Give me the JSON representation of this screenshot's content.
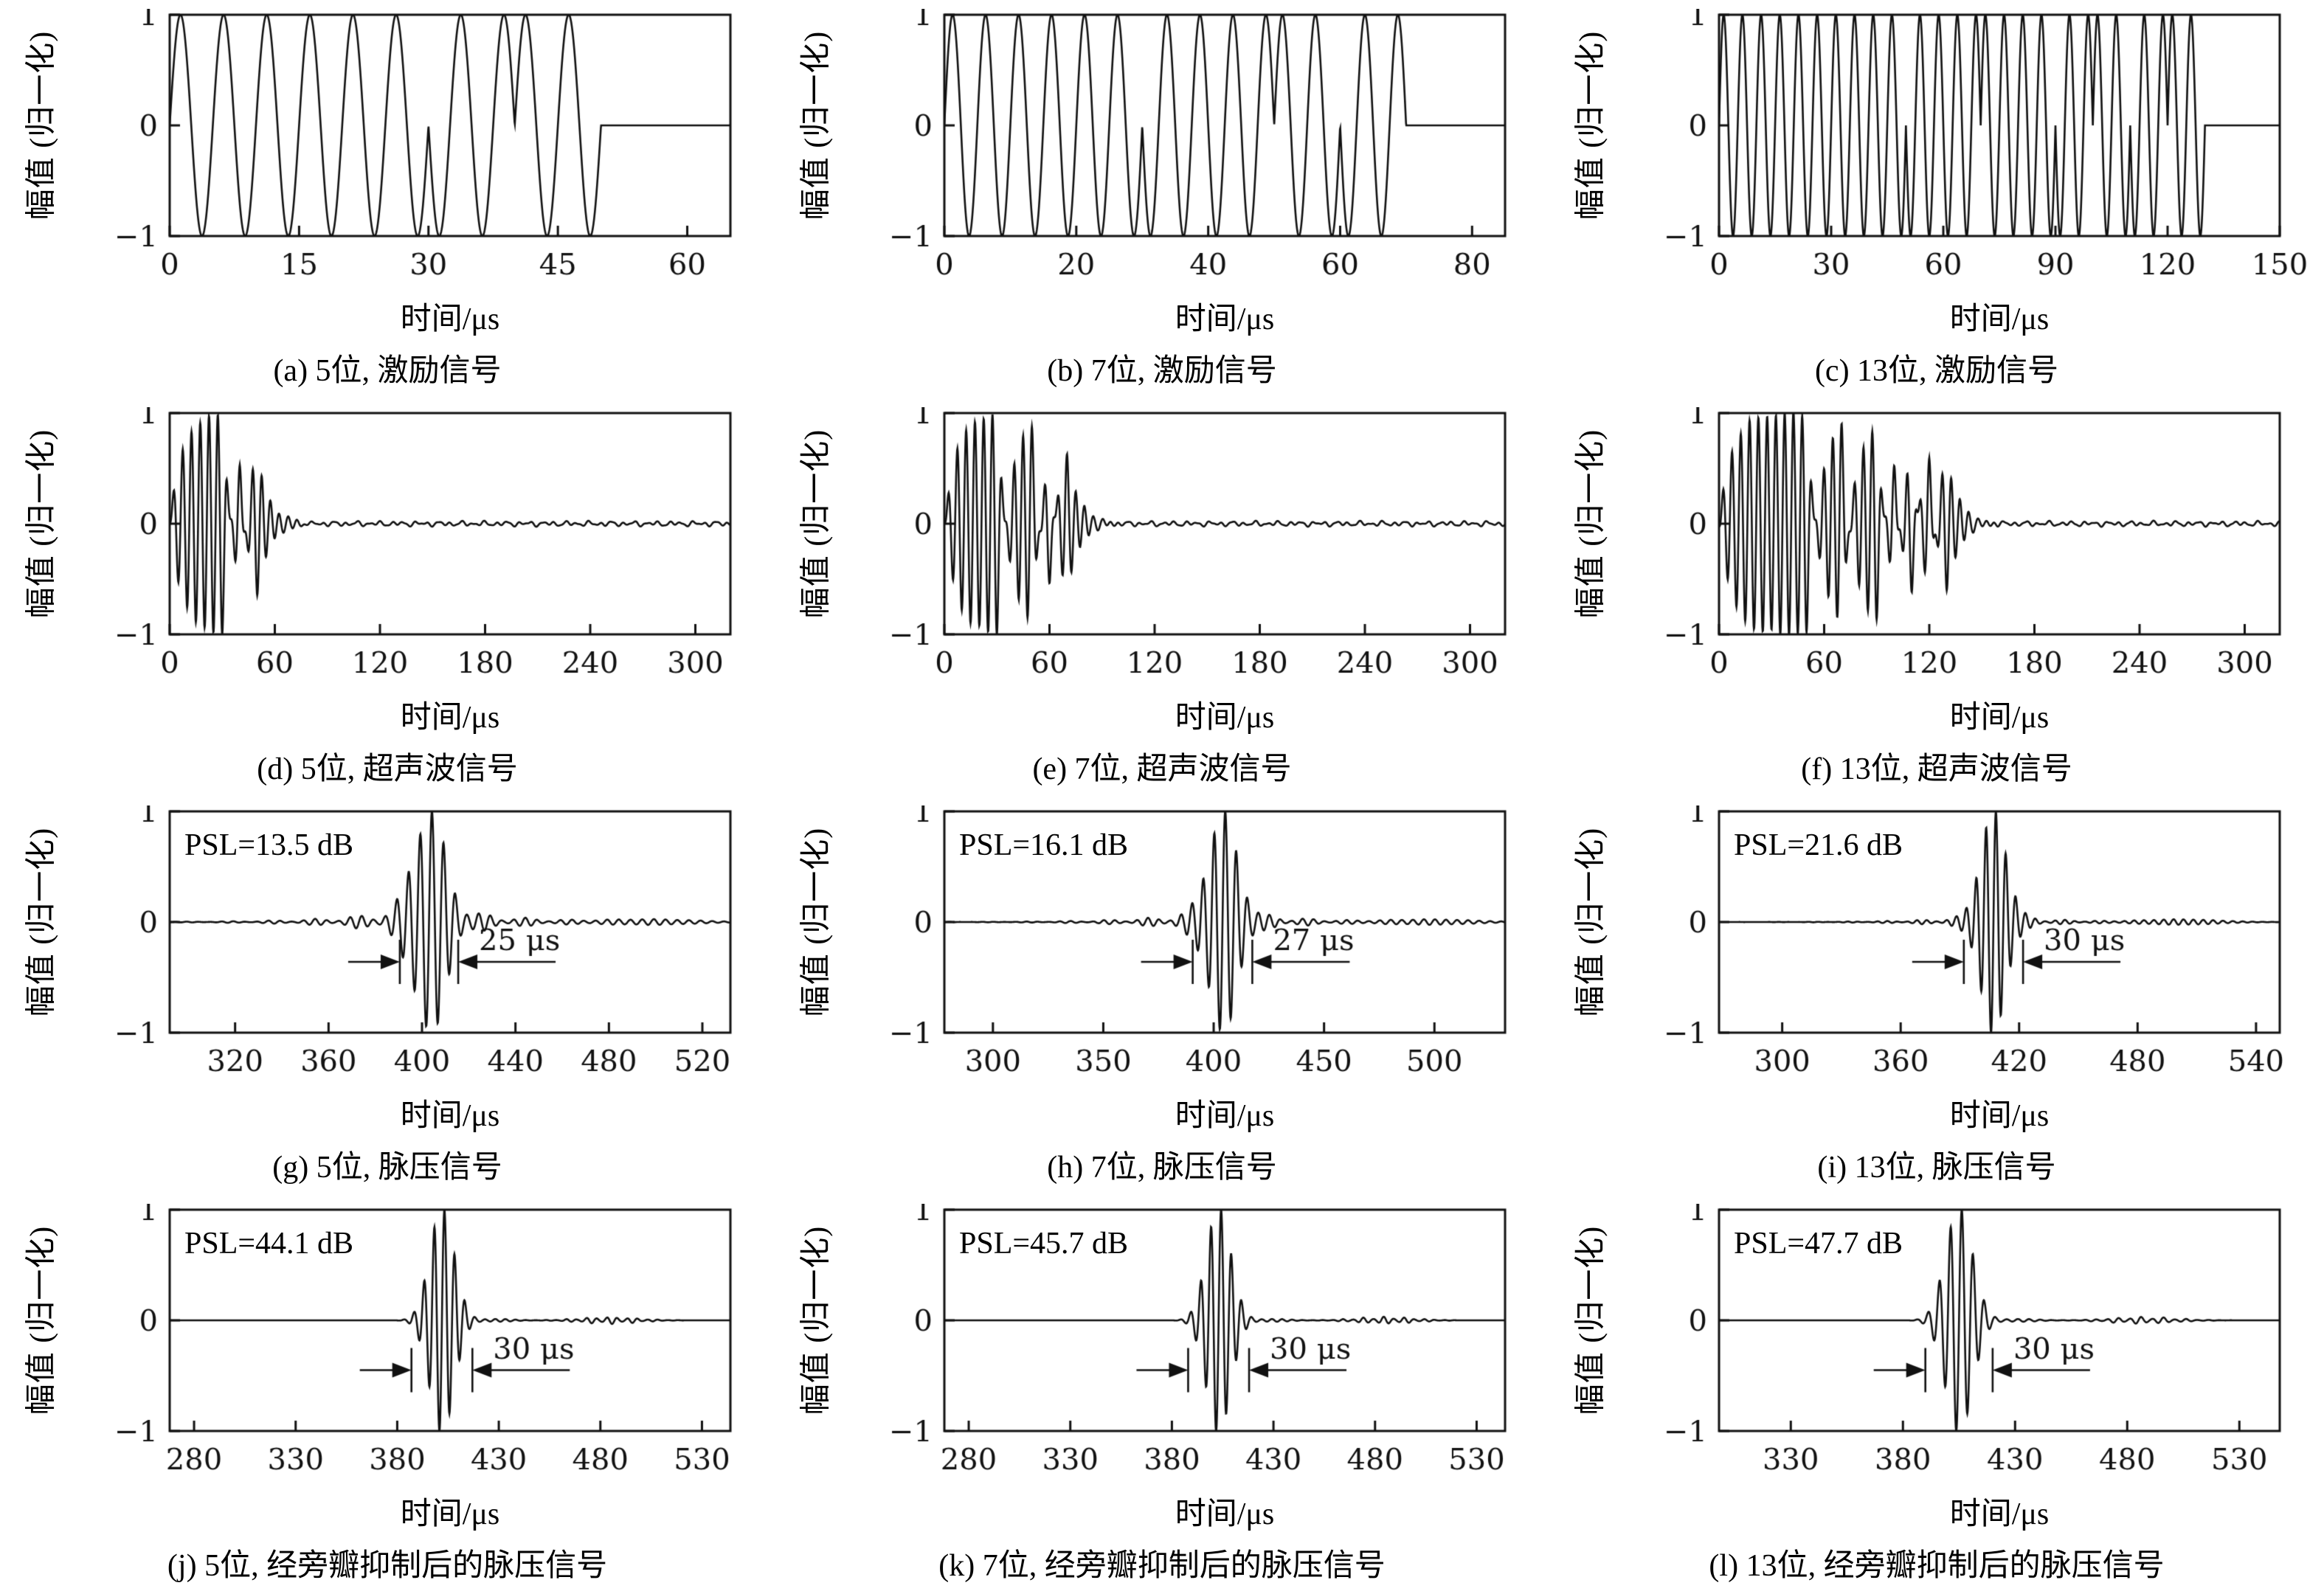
{
  "figure": {
    "line_color": "#111111",
    "background": "#ffffff"
  },
  "chart_data": [
    {
      "id": "a",
      "type": "line",
      "caption": "(a) 5位, 激励信号",
      "xlabel": "时间/μs",
      "ylabel": "幅值 (归一化)",
      "xlim": [
        0,
        65
      ],
      "xticks": [
        0,
        15,
        30,
        45,
        60
      ],
      "ylim": [
        -1,
        1
      ],
      "yticks": [
        1,
        0,
        -1
      ],
      "grid": false,
      "signal": {
        "kind": "excitation",
        "barker_code": [
          1,
          1,
          1,
          -1,
          1
        ],
        "chip_us": 10,
        "carrier_period_us": 5,
        "duration_us": 50
      }
    },
    {
      "id": "b",
      "type": "line",
      "caption": "(b) 7位, 激励信号",
      "xlabel": "时间/μs",
      "ylabel": "幅值 (归一化)",
      "xlim": [
        0,
        85
      ],
      "xticks": [
        0,
        20,
        40,
        60,
        80
      ],
      "ylim": [
        -1,
        1
      ],
      "yticks": [
        1,
        0,
        -1
      ],
      "grid": false,
      "signal": {
        "kind": "excitation",
        "barker_code": [
          1,
          1,
          1,
          -1,
          -1,
          1,
          -1
        ],
        "chip_us": 10,
        "carrier_period_us": 5,
        "duration_us": 70
      }
    },
    {
      "id": "c",
      "type": "line",
      "caption": "(c) 13位, 激励信号",
      "xlabel": "时间/μs",
      "ylabel": "幅值 (归一化)",
      "xlim": [
        0,
        150
      ],
      "xticks": [
        0,
        30,
        60,
        90,
        120,
        150
      ],
      "ylim": [
        -1,
        1
      ],
      "yticks": [
        1,
        0,
        -1
      ],
      "grid": false,
      "signal": {
        "kind": "excitation",
        "barker_code": [
          1,
          1,
          1,
          1,
          1,
          -1,
          -1,
          1,
          1,
          -1,
          1,
          -1,
          1
        ],
        "chip_us": 10,
        "carrier_period_us": 5,
        "duration_us": 130
      }
    },
    {
      "id": "d",
      "type": "line",
      "caption": "(d) 5位, 超声波信号",
      "xlabel": "时间/μs",
      "ylabel": "幅值 (归一化)",
      "xlim": [
        0,
        320
      ],
      "xticks": [
        0,
        60,
        120,
        180,
        240,
        300
      ],
      "ylim": [
        -1,
        1
      ],
      "yticks": [
        1,
        0,
        -1
      ],
      "grid": false,
      "signal": {
        "kind": "ultrasonic",
        "barker_code": [
          1,
          1,
          1,
          -1,
          1
        ],
        "chip_us": 10,
        "carrier_period_us": 5
      }
    },
    {
      "id": "e",
      "type": "line",
      "caption": "(e) 7位, 超声波信号",
      "xlabel": "时间/μs",
      "ylabel": "幅值 (归一化)",
      "xlim": [
        0,
        320
      ],
      "xticks": [
        0,
        60,
        120,
        180,
        240,
        300
      ],
      "ylim": [
        -1,
        1
      ],
      "yticks": [
        1,
        0,
        -1
      ],
      "grid": false,
      "signal": {
        "kind": "ultrasonic",
        "barker_code": [
          1,
          1,
          1,
          -1,
          -1,
          1,
          -1
        ],
        "chip_us": 10,
        "carrier_period_us": 5
      }
    },
    {
      "id": "f",
      "type": "line",
      "caption": "(f) 13位, 超声波信号",
      "xlabel": "时间/μs",
      "ylabel": "幅值 (归一化)",
      "xlim": [
        0,
        320
      ],
      "xticks": [
        0,
        60,
        120,
        180,
        240,
        300
      ],
      "ylim": [
        -1,
        1
      ],
      "yticks": [
        1,
        0,
        -1
      ],
      "grid": false,
      "signal": {
        "kind": "ultrasonic",
        "barker_code": [
          1,
          1,
          1,
          1,
          1,
          -1,
          -1,
          1,
          1,
          -1,
          1,
          -1,
          1
        ],
        "chip_us": 10,
        "carrier_period_us": 5
      }
    },
    {
      "id": "g",
      "type": "line",
      "caption": "(g) 5位, 脉压信号",
      "psl_label": "PSL=13.5 dB",
      "psl_db": 13.5,
      "xlabel": "时间/μs",
      "ylabel": "幅值 (归一化)",
      "xlim": [
        292,
        532
      ],
      "xticks": [
        320,
        360,
        400,
        440,
        480,
        520
      ],
      "ylim": [
        -1,
        1
      ],
      "yticks": [
        1,
        0,
        -1
      ],
      "grid": false,
      "signal": {
        "kind": "pulse_compressed",
        "center_us": 403,
        "mainlobe_sigma_us": 6.5,
        "psl_db": 13.5,
        "carrier_period_us": 5
      },
      "annotation": {
        "width_us": 25,
        "label": "25 μs",
        "y": -0.36
      }
    },
    {
      "id": "h",
      "type": "line",
      "caption": "(h) 7位, 脉压信号",
      "psl_label": "PSL=16.1 dB",
      "psl_db": 16.1,
      "xlabel": "时间/μs",
      "ylabel": "幅值 (归一化)",
      "xlim": [
        278,
        532
      ],
      "xticks": [
        300,
        350,
        400,
        450,
        500
      ],
      "ylim": [
        -1,
        1
      ],
      "yticks": [
        1,
        0,
        -1
      ],
      "grid": false,
      "signal": {
        "kind": "pulse_compressed",
        "center_us": 404,
        "mainlobe_sigma_us": 6.5,
        "psl_db": 16.1,
        "carrier_period_us": 5
      },
      "annotation": {
        "width_us": 27,
        "label": "27 μs",
        "y": -0.36
      }
    },
    {
      "id": "i",
      "type": "line",
      "caption": "(i) 13位, 脉压信号",
      "psl_label": "PSL=21.6 dB",
      "psl_db": 21.6,
      "xlabel": "时间/μs",
      "ylabel": "幅值 (归一化)",
      "xlim": [
        268,
        552
      ],
      "xticks": [
        300,
        360,
        420,
        480,
        540
      ],
      "ylim": [
        -1,
        1
      ],
      "yticks": [
        1,
        0,
        -1
      ],
      "grid": false,
      "signal": {
        "kind": "pulse_compressed",
        "center_us": 407,
        "mainlobe_sigma_us": 6.5,
        "psl_db": 21.6,
        "carrier_period_us": 5
      },
      "annotation": {
        "width_us": 30,
        "label": "30 μs",
        "y": -0.36
      }
    },
    {
      "id": "j",
      "type": "line",
      "caption": "(j) 5位, 经旁瓣抑制后的脉压信号",
      "psl_label": "PSL=44.1 dB",
      "psl_db": 44.1,
      "xlabel": "时间/μs",
      "ylabel": "幅值 (归一化)",
      "xlim": [
        268,
        544
      ],
      "xticks": [
        280,
        330,
        380,
        430,
        480,
        530
      ],
      "ylim": [
        -1,
        1
      ],
      "yticks": [
        1,
        0,
        -1
      ],
      "grid": false,
      "signal": {
        "kind": "pulse_compressed_clean",
        "center_us": 402,
        "mainlobe_sigma_us": 6,
        "psl_db": 44.1,
        "carrier_period_us": 5
      },
      "annotation": {
        "width_us": 30,
        "label": "30 μs",
        "y": -0.45
      }
    },
    {
      "id": "k",
      "type": "line",
      "caption": "(k) 7位, 经旁瓣抑制后的脉压信号",
      "psl_label": "PSL=45.7 dB",
      "psl_db": 45.7,
      "xlabel": "时间/μs",
      "ylabel": "幅值 (归一化)",
      "xlim": [
        268,
        544
      ],
      "xticks": [
        280,
        330,
        380,
        430,
        480,
        530
      ],
      "ylim": [
        -1,
        1
      ],
      "yticks": [
        1,
        0,
        -1
      ],
      "grid": false,
      "signal": {
        "kind": "pulse_compressed_clean",
        "center_us": 403,
        "mainlobe_sigma_us": 6,
        "psl_db": 45.7,
        "carrier_period_us": 5
      },
      "annotation": {
        "width_us": 30,
        "label": "30 μs",
        "y": -0.45
      }
    },
    {
      "id": "l",
      "type": "line",
      "caption": "(l) 13位, 经旁瓣抑制后的脉压信号",
      "psl_label": "PSL=47.7 dB",
      "psl_db": 47.7,
      "xlabel": "时间/μs",
      "ylabel": "幅值 (归一化)",
      "xlim": [
        298,
        548
      ],
      "xticks": [
        330,
        380,
        430,
        480,
        530
      ],
      "ylim": [
        -1,
        1
      ],
      "yticks": [
        1,
        0,
        -1
      ],
      "grid": false,
      "signal": {
        "kind": "pulse_compressed_clean",
        "center_us": 405,
        "mainlobe_sigma_us": 6,
        "psl_db": 47.7,
        "carrier_period_us": 5
      },
      "annotation": {
        "width_us": 30,
        "label": "30 μs",
        "y": -0.45
      }
    }
  ]
}
